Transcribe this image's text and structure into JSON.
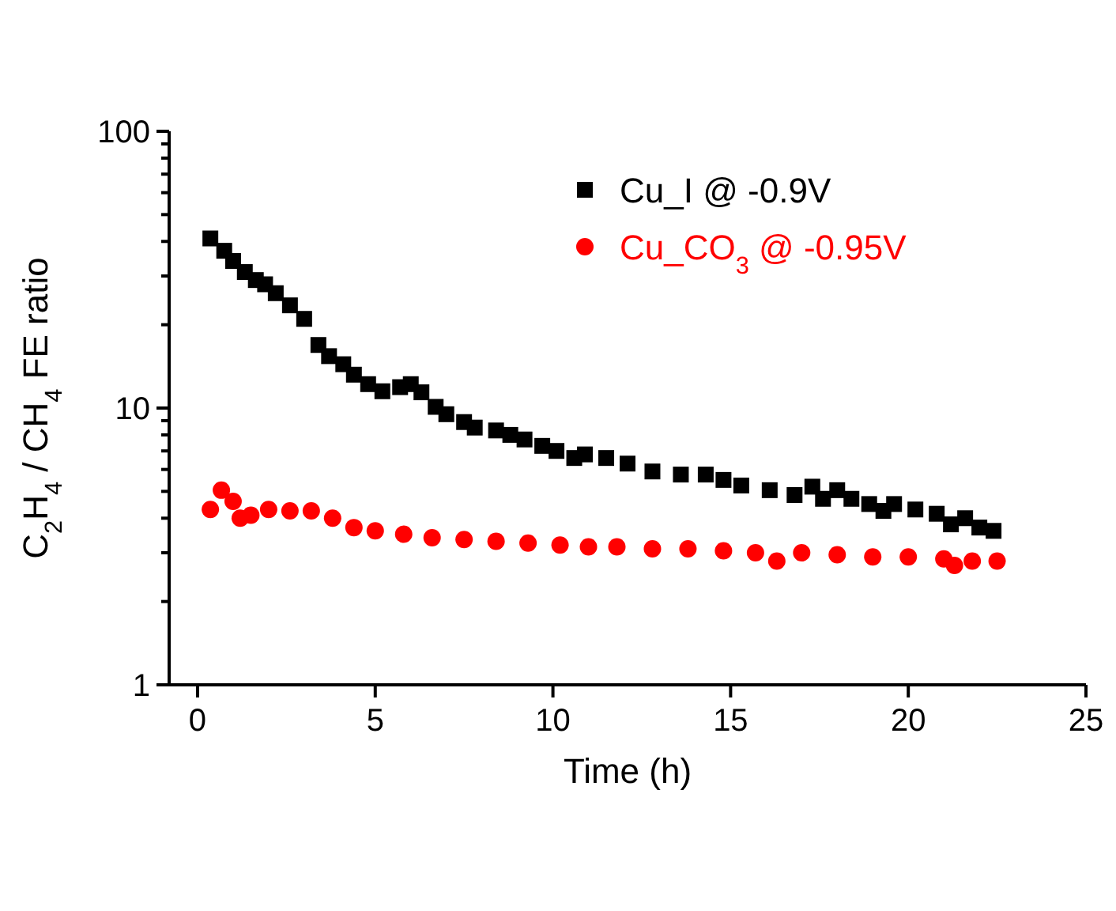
{
  "chart_data": {
    "type": "scatter",
    "xlabel": "Time (h)",
    "ylabel": "C$_{2}$H$_{4}$ / CH$_{4}$ FE ratio",
    "log": "y",
    "xlim": [
      -0.8,
      25
    ],
    "ylim": [
      1,
      100
    ],
    "xticks": [
      0,
      5,
      10,
      15,
      20,
      25
    ],
    "yticks": [
      1,
      {
        "value": 2,
        "label": null
      },
      {
        "value": 3,
        "label": null
      },
      {
        "value": 4,
        "label": null
      },
      {
        "value": 5,
        "label": null
      },
      {
        "value": 6,
        "label": null
      },
      {
        "value": 7,
        "label": null
      },
      {
        "value": 8,
        "label": null
      },
      {
        "value": 9,
        "label": null
      },
      10,
      {
        "value": 20,
        "label": null
      },
      {
        "value": 30,
        "label": null
      },
      {
        "value": 40,
        "label": null
      },
      {
        "value": 50,
        "label": null
      },
      {
        "value": 60,
        "label": null
      },
      {
        "value": 70,
        "label": null
      },
      {
        "value": 80,
        "label": null
      },
      {
        "value": 90,
        "label": null
      },
      100
    ],
    "grid": false,
    "legend": "top right",
    "series": [
      {
        "name": "Cu_I @ -0.9V",
        "color": "#000000",
        "marker": "square",
        "x": [
          0.36,
          0.75,
          1.0,
          1.33,
          1.64,
          1.9,
          2.2,
          2.6,
          3.0,
          3.4,
          3.7,
          4.1,
          4.4,
          4.8,
          5.2,
          5.7,
          6.0,
          6.3,
          6.7,
          7.0,
          7.5,
          7.8,
          8.4,
          8.8,
          9.2,
          9.7,
          10.1,
          10.6,
          10.9,
          11.5,
          12.1,
          12.8,
          13.6,
          14.3,
          14.8,
          15.3,
          16.1,
          16.8,
          17.3,
          17.6,
          18.0,
          18.4,
          18.9,
          19.3,
          19.6,
          20.2,
          20.8,
          21.2,
          21.6,
          22.0,
          22.4
        ],
        "values": [
          41,
          37,
          34,
          31,
          29,
          28,
          26,
          23.5,
          21,
          16.9,
          15.4,
          14.4,
          13.2,
          12.2,
          11.5,
          11.9,
          12.2,
          11.4,
          10.1,
          9.5,
          8.9,
          8.5,
          8.3,
          8.0,
          7.7,
          7.3,
          7.0,
          6.6,
          6.8,
          6.6,
          6.3,
          5.9,
          5.75,
          5.75,
          5.5,
          5.25,
          5.05,
          4.85,
          5.2,
          4.7,
          5.05,
          4.7,
          4.5,
          4.25,
          4.5,
          4.3,
          4.15,
          3.8,
          4.0,
          3.7,
          3.6
        ]
      },
      {
        "name": "Cu_CO$_{3}$ @ -0.95V",
        "color": "#ff0000",
        "marker": "circle",
        "x": [
          0.36,
          0.67,
          1.0,
          1.2,
          1.5,
          2.0,
          2.6,
          3.2,
          3.8,
          4.4,
          5.0,
          5.8,
          6.6,
          7.5,
          8.4,
          9.3,
          10.2,
          11.0,
          11.8,
          12.8,
          13.8,
          14.8,
          15.7,
          16.3,
          17.0,
          18.0,
          19.0,
          20.0,
          21.0,
          21.3,
          21.8,
          22.5
        ],
        "values": [
          4.3,
          5.05,
          4.6,
          4.0,
          4.1,
          4.3,
          4.25,
          4.25,
          4.0,
          3.7,
          3.6,
          3.5,
          3.4,
          3.35,
          3.3,
          3.25,
          3.2,
          3.15,
          3.15,
          3.1,
          3.1,
          3.05,
          3.0,
          2.8,
          3.0,
          2.95,
          2.9,
          2.9,
          2.85,
          2.7,
          2.8,
          2.8
        ]
      }
    ]
  }
}
